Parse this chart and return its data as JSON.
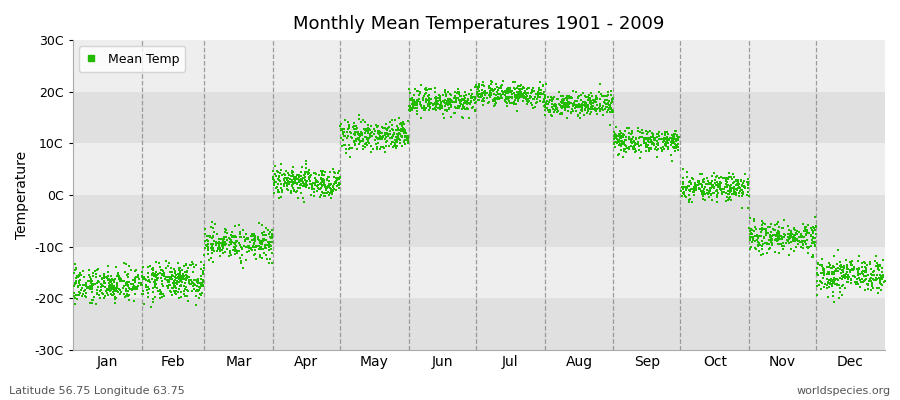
{
  "title": "Monthly Mean Temperatures 1901 - 2009",
  "ylabel": "Temperature",
  "subtitle_left": "Latitude 56.75 Longitude 63.75",
  "subtitle_right": "worldspecies.org",
  "legend_label": "Mean Temp",
  "marker_color": "#22bb00",
  "ylim": [
    -30,
    30
  ],
  "ytick_labels": [
    "-30C",
    "-20C",
    "-10C",
    "0C",
    "10C",
    "20C",
    "30C"
  ],
  "ytick_values": [
    -30,
    -20,
    -10,
    0,
    10,
    20,
    30
  ],
  "months": [
    "Jan",
    "Feb",
    "Mar",
    "Apr",
    "May",
    "Jun",
    "Jul",
    "Aug",
    "Sep",
    "Oct",
    "Nov",
    "Dec"
  ],
  "month_days": [
    31,
    28,
    31,
    30,
    31,
    30,
    31,
    31,
    30,
    31,
    30,
    31
  ],
  "month_means": [
    -17.5,
    -16.5,
    -9.5,
    2.5,
    11.5,
    18.0,
    19.5,
    17.5,
    10.5,
    1.5,
    -8.0,
    -15.5
  ],
  "month_stds": [
    3.5,
    4.0,
    3.5,
    3.0,
    3.0,
    2.5,
    2.0,
    2.0,
    2.0,
    2.5,
    3.0,
    3.5
  ],
  "n_years": 109,
  "background_color": "#ffffff",
  "plot_bg_color_light": "#eeeeee",
  "plot_bg_color_dark": "#e0e0e0",
  "grid_color": "#888888",
  "seed": 42
}
